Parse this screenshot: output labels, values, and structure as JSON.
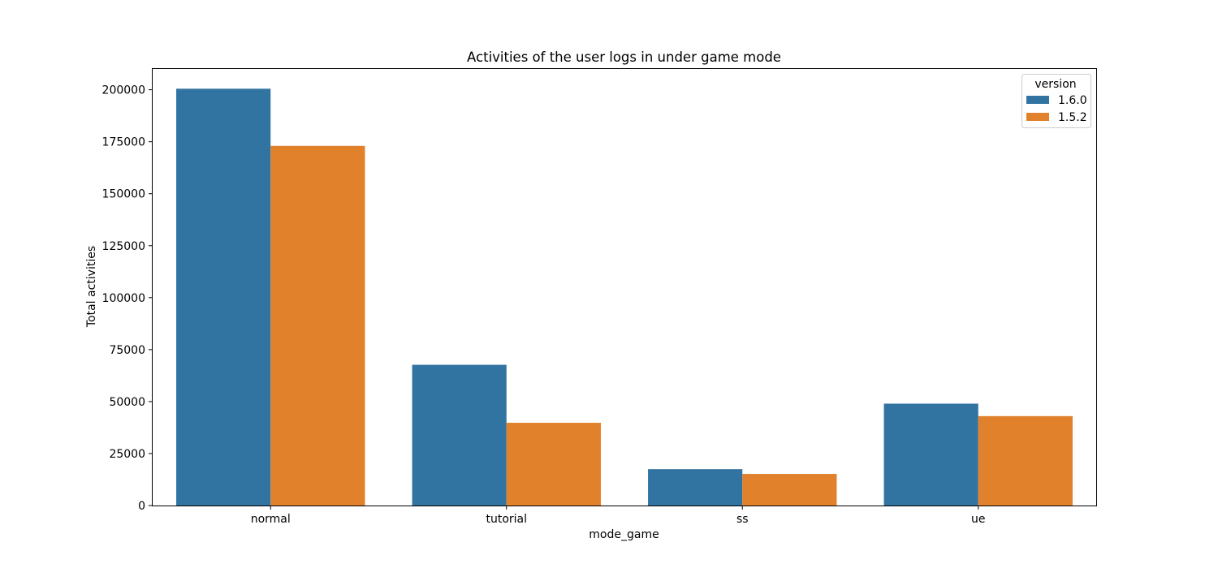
{
  "chart_data": {
    "type": "bar",
    "title": "Activities of the user logs in under game mode",
    "xlabel": "mode_game",
    "ylabel": "Total activities",
    "categories": [
      "normal",
      "tutorial",
      "ss",
      "ue"
    ],
    "series": [
      {
        "name": "1.6.0",
        "color": "#3274a1",
        "values": [
          200500,
          67700,
          17500,
          49000
        ]
      },
      {
        "name": "1.5.2",
        "color": "#e1812c",
        "values": [
          173000,
          39800,
          15200,
          43000
        ]
      }
    ],
    "ylim": [
      0,
      210000
    ],
    "yticks": [
      0,
      25000,
      50000,
      75000,
      100000,
      125000,
      150000,
      175000,
      200000
    ],
    "grid": false,
    "legend": {
      "title": "version",
      "placement": "top-right"
    }
  }
}
